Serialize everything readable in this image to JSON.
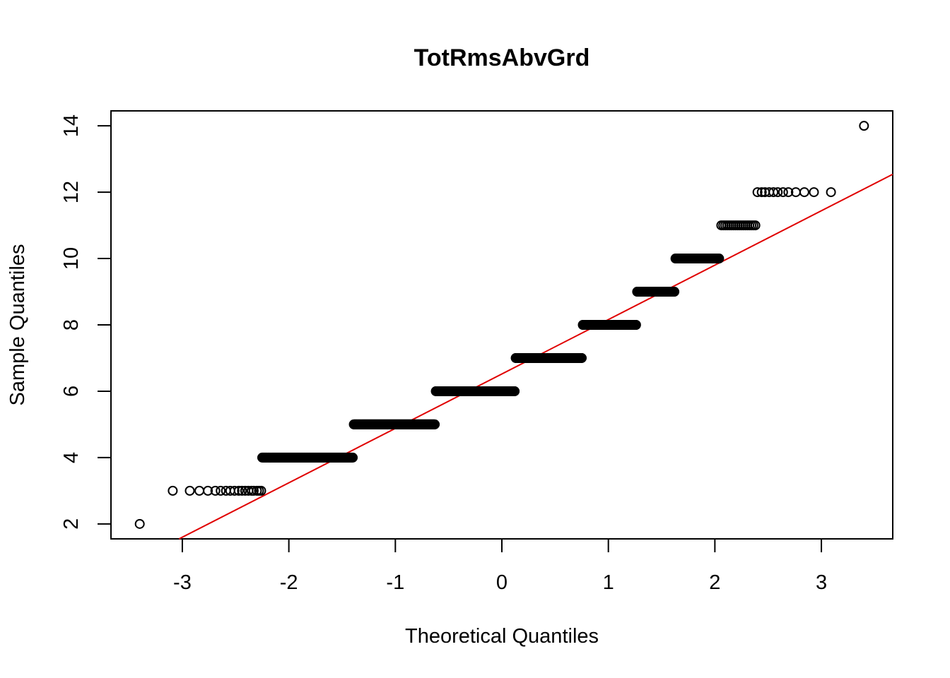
{
  "chart_data": {
    "type": "scatter",
    "title": "TotRmsAbvGrd",
    "xlabel": "Theoretical Quantiles",
    "ylabel": "Sample Quantiles",
    "xlim": [
      -3.67,
      3.67
    ],
    "ylim": [
      1.55,
      14.45
    ],
    "x_ticks": [
      -3,
      -2,
      -1,
      0,
      1,
      2,
      3
    ],
    "y_ticks": [
      2,
      4,
      6,
      8,
      10,
      12,
      14
    ],
    "grid": false,
    "marker": "open-circle",
    "point_color": "#000000",
    "reference_line": {
      "color": "#e00000",
      "intercept": 6.52,
      "slope": 1.64
    },
    "points": [
      {
        "x": -3.4,
        "y": 2
      },
      {
        "x": -3.09,
        "y": 3
      },
      {
        "x": -2.93,
        "y": 3
      },
      {
        "x": -2.84,
        "y": 3
      },
      {
        "x": -2.76,
        "y": 3
      },
      {
        "x": -2.69,
        "y": 3
      },
      {
        "x": -2.64,
        "y": 3
      },
      {
        "x": -2.59,
        "y": 3
      },
      {
        "x": -2.55,
        "y": 3
      },
      {
        "x": -2.51,
        "y": 3
      },
      {
        "x": -2.47,
        "y": 3
      },
      {
        "x": -2.44,
        "y": 3
      },
      {
        "x": -2.41,
        "y": 3
      },
      {
        "x": -2.38,
        "y": 3
      },
      {
        "x": -2.35,
        "y": 3
      },
      {
        "x": -2.33,
        "y": 3
      },
      {
        "x": -2.3,
        "y": 3
      },
      {
        "x": -2.28,
        "y": 3
      },
      {
        "x": -2.26,
        "y": 3
      },
      {
        "x": 2.4,
        "y": 12
      },
      {
        "x": 2.44,
        "y": 12
      },
      {
        "x": 2.47,
        "y": 12
      },
      {
        "x": 2.51,
        "y": 12
      },
      {
        "x": 2.55,
        "y": 12
      },
      {
        "x": 2.59,
        "y": 12
      },
      {
        "x": 2.64,
        "y": 12
      },
      {
        "x": 2.69,
        "y": 12
      },
      {
        "x": 2.76,
        "y": 12
      },
      {
        "x": 2.84,
        "y": 12
      },
      {
        "x": 2.93,
        "y": 12
      },
      {
        "x": 3.09,
        "y": 12
      },
      {
        "x": 3.4,
        "y": 14
      }
    ],
    "dense_runs": [
      {
        "y": 4,
        "x_start": -2.25,
        "x_end": -1.4,
        "count": 97
      },
      {
        "y": 5,
        "x_start": -1.39,
        "x_end": -0.63,
        "count": 275
      },
      {
        "y": 6,
        "x_start": -0.62,
        "x_end": 0.12,
        "count": 402
      },
      {
        "y": 7,
        "x_start": 0.13,
        "x_end": 0.75,
        "count": 329
      },
      {
        "y": 8,
        "x_start": 0.76,
        "x_end": 1.26,
        "count": 187
      },
      {
        "y": 9,
        "x_start": 1.27,
        "x_end": 1.62,
        "count": 75
      },
      {
        "y": 10,
        "x_start": 1.63,
        "x_end": 2.04,
        "count": 47
      },
      {
        "y": 11,
        "x_start": 2.06,
        "x_end": 2.38,
        "count": 18
      }
    ]
  }
}
